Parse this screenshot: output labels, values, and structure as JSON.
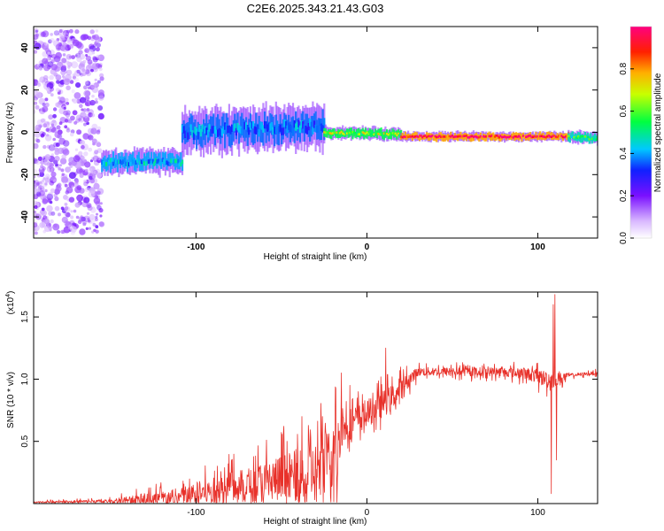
{
  "title": "C2E6.2025.343.21.43.G03",
  "colors": {
    "snr_line": "#e8312a",
    "axis": "#000000",
    "background": "#ffffff"
  },
  "chart_data": [
    {
      "id": "spectrogram",
      "type": "heatmap",
      "xlabel": "Height of straight line (km)",
      "ylabel": "Frequency (Hz)",
      "xlim": [
        -195,
        135
      ],
      "ylim": [
        -50,
        50
      ],
      "xticks": [
        -100,
        0,
        100
      ],
      "yticks": [
        -40,
        -20,
        0,
        20,
        40
      ],
      "colorbar": {
        "label": "Normalized spectral amplitude",
        "range": [
          0,
          1
        ],
        "ticks": [
          0.0,
          0.2,
          0.4,
          0.6,
          0.8
        ],
        "tick_labels": [
          "0.0",
          "0.2",
          "0.4",
          "0.6",
          "0.8"
        ]
      },
      "trace_segments": [
        {
          "x": [
            -195,
            -155
          ],
          "freq": [
            0,
            0
          ],
          "spread": 48,
          "amplitude": 0.15,
          "density": 0.55
        },
        {
          "x": [
            -155,
            -108
          ],
          "freq": [
            -14,
            -14
          ],
          "spread": 4,
          "amplitude": 0.4,
          "density": 0.9
        },
        {
          "x": [
            -108,
            -25
          ],
          "freq": [
            0,
            3
          ],
          "spread": 7,
          "amplitude": 0.35,
          "density": 0.9
        },
        {
          "x": [
            -25,
            20
          ],
          "freq": [
            0,
            -1
          ],
          "spread": 2,
          "amplitude": 0.6,
          "density": 1.0
        },
        {
          "x": [
            20,
            118
          ],
          "freq": [
            -2,
            -2
          ],
          "spread": 1.5,
          "amplitude": 0.95,
          "density": 1.0
        },
        {
          "x": [
            118,
            135
          ],
          "freq": [
            -2,
            -3
          ],
          "spread": 2,
          "amplitude": 0.5,
          "density": 1.0
        }
      ]
    },
    {
      "id": "snr",
      "type": "line",
      "xlabel": "Height of straight line (km)",
      "ylabel": "SNR (10 * v/v)",
      "y_scale_label": "(x10",
      "y_scale_exponent": "4",
      "xlim": [
        -195,
        135
      ],
      "ylim": [
        0,
        1.7
      ],
      "xticks": [
        -100,
        0,
        100
      ],
      "yticks": [
        0.5,
        1.0,
        1.5
      ],
      "ytick_labels": [
        "0.5",
        "1.0",
        "1.5"
      ],
      "envelope": [
        {
          "x": -195,
          "base": 0.01,
          "amp": 0.01
        },
        {
          "x": -150,
          "base": 0.02,
          "amp": 0.02
        },
        {
          "x": -130,
          "base": 0.03,
          "amp": 0.08
        },
        {
          "x": -110,
          "base": 0.05,
          "amp": 0.1
        },
        {
          "x": -90,
          "base": 0.1,
          "amp": 0.15
        },
        {
          "x": -70,
          "base": 0.15,
          "amp": 0.2
        },
        {
          "x": -50,
          "base": 0.2,
          "amp": 0.28
        },
        {
          "x": -30,
          "base": 0.25,
          "amp": 0.35
        },
        {
          "x": -18,
          "base": 0.4,
          "amp": 0.4
        },
        {
          "x": -15,
          "base": 0.6,
          "amp": 0.2
        },
        {
          "x": 0,
          "base": 0.72,
          "amp": 0.15
        },
        {
          "x": 15,
          "base": 0.85,
          "amp": 0.15
        },
        {
          "x": 25,
          "base": 1.0,
          "amp": 0.08
        },
        {
          "x": 30,
          "base": 1.06,
          "amp": 0.05
        },
        {
          "x": 80,
          "base": 1.06,
          "amp": 0.05
        },
        {
          "x": 95,
          "base": 1.04,
          "amp": 0.07
        },
        {
          "x": 105,
          "base": 1.0,
          "amp": 0.1
        },
        {
          "x": 112,
          "base": 1.0,
          "amp": 0.1
        },
        {
          "x": 118,
          "base": 1.03,
          "amp": 0.02
        },
        {
          "x": 135,
          "base": 1.05,
          "amp": 0.02
        }
      ],
      "spikes": [
        {
          "x": -38,
          "y": 0.7
        },
        {
          "x": -26,
          "y": 0.7
        },
        {
          "x": -15,
          "y": 1.05
        },
        {
          "x": -10,
          "y": 0.95
        },
        {
          "x": -5,
          "y": 0.9
        },
        {
          "x": 11,
          "y": 1.25
        },
        {
          "x": 108,
          "y": 0.08
        },
        {
          "x": 109,
          "y": 1.6
        },
        {
          "x": 110,
          "y": 1.68
        },
        {
          "x": 111,
          "y": 0.35
        }
      ]
    }
  ]
}
